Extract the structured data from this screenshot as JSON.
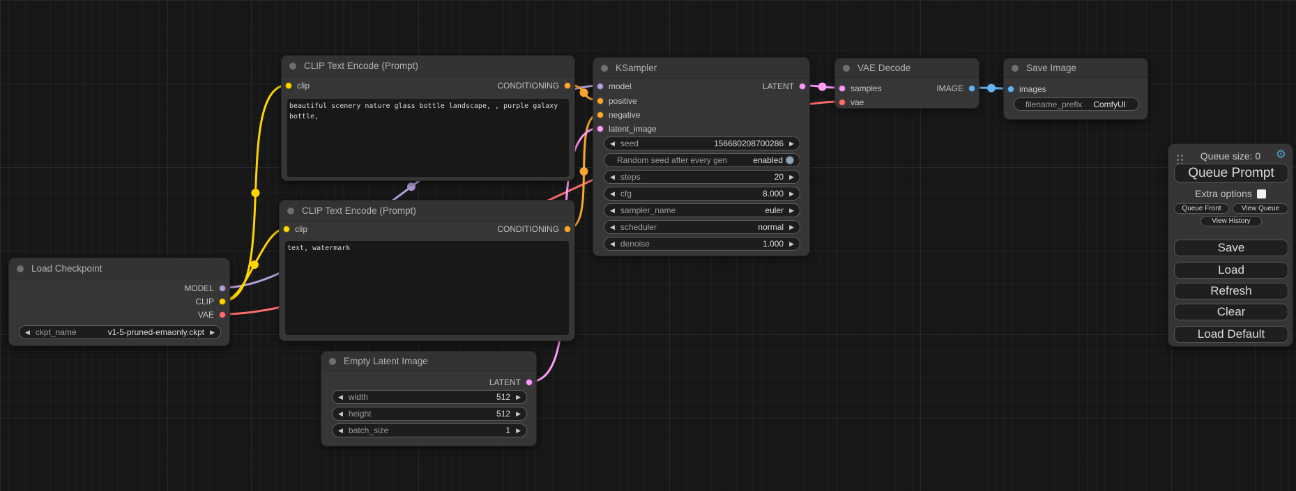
{
  "colors": {
    "model": "#B39DDB",
    "clip": "#FFD500",
    "vae": "#FF6E6E",
    "conditioning": "#FFA931",
    "latent": "#FF9CF9",
    "image": "#64B5F6"
  },
  "nodes": {
    "load_checkpoint": {
      "title": "Load Checkpoint",
      "outputs": {
        "model": "MODEL",
        "clip": "CLIP",
        "vae": "VAE"
      },
      "widget": {
        "label": "ckpt_name",
        "value": "v1-5-pruned-emaonly.ckpt"
      }
    },
    "clip1": {
      "title": "CLIP Text Encode (Prompt)",
      "input": "clip",
      "output": "CONDITIONING",
      "prompt": "beautiful scenery nature glass bottle landscape, , purple galaxy bottle,"
    },
    "clip2": {
      "title": "CLIP Text Encode (Prompt)",
      "input": "clip",
      "output": "CONDITIONING",
      "prompt": "text, watermark"
    },
    "ksampler": {
      "title": "KSampler",
      "inputs": {
        "model": "model",
        "positive": "positive",
        "negative": "negative",
        "latent": "latent_image"
      },
      "output": "LATENT",
      "widgets": {
        "seed": {
          "label": "seed",
          "value": "156680208700286"
        },
        "random": {
          "label": "Random seed after every gen",
          "value": "enabled"
        },
        "steps": {
          "label": "steps",
          "value": "20"
        },
        "cfg": {
          "label": "cfg",
          "value": "8.000"
        },
        "sampler": {
          "label": "sampler_name",
          "value": "euler"
        },
        "scheduler": {
          "label": "scheduler",
          "value": "normal"
        },
        "denoise": {
          "label": "denoise",
          "value": "1.000"
        }
      }
    },
    "vae_decode": {
      "title": "VAE Decode",
      "inputs": {
        "samples": "samples",
        "vae": "vae"
      },
      "output": "IMAGE"
    },
    "save_image": {
      "title": "Save Image",
      "input": "images",
      "widget": {
        "label": "filename_prefix",
        "value": "ComfyUI"
      }
    },
    "empty_latent": {
      "title": "Empty Latent Image",
      "output": "LATENT",
      "widgets": {
        "width": {
          "label": "width",
          "value": "512"
        },
        "height": {
          "label": "height",
          "value": "512"
        },
        "batch": {
          "label": "batch_size",
          "value": "1"
        }
      }
    }
  },
  "queue": {
    "size_label": "Queue size: 0",
    "prompt": "Queue Prompt",
    "extra_options": "Extra options",
    "front": "Queue Front",
    "view_queue": "View Queue",
    "view_history": "View History",
    "save": "Save",
    "load": "Load",
    "refresh": "Refresh",
    "clear": "Clear",
    "load_default": "Load Default"
  },
  "wires": [
    {
      "from": "load_checkpoint.MODEL",
      "to": "ksampler.model",
      "type": "model"
    },
    {
      "from": "load_checkpoint.CLIP",
      "to": "clip1.clip",
      "type": "clip"
    },
    {
      "from": "load_checkpoint.CLIP",
      "to": "clip2.clip",
      "type": "clip"
    },
    {
      "from": "load_checkpoint.VAE",
      "to": "vae_decode.vae",
      "type": "vae"
    },
    {
      "from": "clip1.CONDITIONING",
      "to": "ksampler.positive",
      "type": "conditioning"
    },
    {
      "from": "clip2.CONDITIONING",
      "to": "ksampler.negative",
      "type": "conditioning"
    },
    {
      "from": "empty_latent.LATENT",
      "to": "ksampler.latent_image",
      "type": "latent"
    },
    {
      "from": "ksampler.LATENT",
      "to": "vae_decode.samples",
      "type": "latent"
    },
    {
      "from": "vae_decode.IMAGE",
      "to": "save_image.images",
      "type": "image"
    }
  ]
}
